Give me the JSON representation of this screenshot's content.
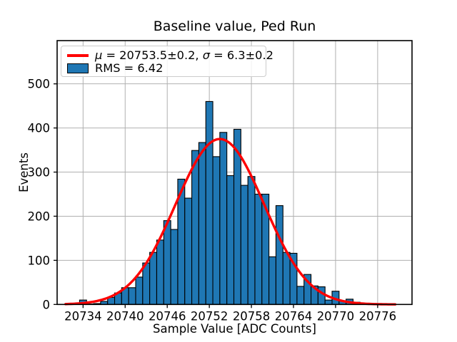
{
  "chart_data": {
    "type": "bar",
    "subtype": "histogram-with-gaussian-fit",
    "title": "Baseline value, Ped Run",
    "xlabel": "Sample Value [ADC Counts]",
    "ylabel": "Events",
    "xlim": [
      20730.3,
      20780.9
    ],
    "ylim": [
      0,
      598
    ],
    "grid": true,
    "legend_position": "upper left",
    "bin_width": 1,
    "bin_centers": [
      20734,
      20735,
      20736,
      20737,
      20738,
      20739,
      20740,
      20741,
      20742,
      20743,
      20744,
      20745,
      20746,
      20747,
      20748,
      20749,
      20750,
      20751,
      20752,
      20753,
      20754,
      20755,
      20756,
      20757,
      20758,
      20759,
      20760,
      20761,
      20762,
      20763,
      20764,
      20765,
      20766,
      20767,
      20768,
      20769,
      20770,
      20771,
      20772,
      20773
    ],
    "counts": [
      10,
      1,
      2,
      7,
      16,
      26,
      38,
      38,
      62,
      94,
      118,
      146,
      190,
      170,
      284,
      241,
      349,
      367,
      460,
      335,
      390,
      292,
      397,
      270,
      290,
      250,
      250,
      108,
      224,
      118,
      116,
      41,
      68,
      42,
      40,
      10,
      30,
      8,
      12,
      5
    ],
    "xticks": [
      20734,
      20740,
      20746,
      20752,
      20758,
      20764,
      20770,
      20776
    ],
    "yticks": [
      0,
      100,
      200,
      300,
      400,
      500
    ],
    "fit": {
      "type": "gaussian",
      "mu": 20753.5,
      "mu_err": 0.2,
      "sigma": 6.3,
      "sigma_err": 0.2,
      "amplitude": 375,
      "x_range": [
        20731.5,
        20778.6
      ],
      "label": "μ = 20753.5±0.2, σ = 6.3±0.2"
    },
    "rms": 6.42,
    "hist_label": "RMS = 6.42",
    "colors": {
      "bar_fill": "#1f77b4",
      "bar_edge": "#000000",
      "fit_line": "#ff0000",
      "grid": "#b0b0b0",
      "frame": "#000000",
      "background": "#ffffff"
    }
  },
  "legend": {
    "fit_mu_symbol": "μ",
    "fit_text_after_mu": " = 20753.5±0.2, ",
    "fit_sigma_symbol": "σ",
    "fit_text_after_sigma": " = 6.3±0.2",
    "hist_label": "RMS = 6.42"
  }
}
